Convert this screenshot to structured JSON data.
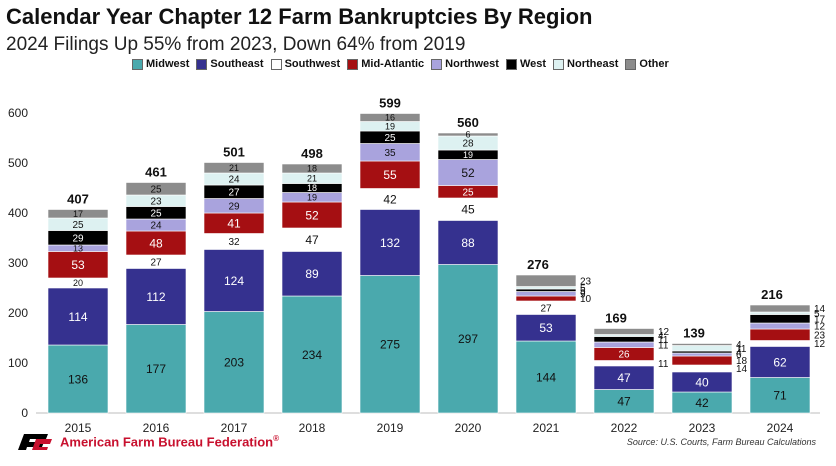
{
  "chart_data": {
    "type": "bar",
    "stacked": true,
    "title": "Calendar Year Chapter 12 Farm Bankruptcies By Region",
    "subtitle": "2024 Filings Up 55% from 2023, Down 64% from 2019",
    "categories": [
      "2015",
      "2016",
      "2017",
      "2018",
      "2019",
      "2020",
      "2021",
      "2022",
      "2023",
      "2024"
    ],
    "ylim": [
      0,
      600
    ],
    "yticks": [
      0,
      100,
      200,
      300,
      400,
      500,
      600
    ],
    "grid": false,
    "legend_position": "top",
    "totals": [
      407,
      461,
      501,
      498,
      599,
      560,
      276,
      169,
      139,
      216
    ],
    "series": [
      {
        "name": "Midwest",
        "color": "#4aa9ad",
        "values": [
          136,
          177,
          203,
          234,
          275,
          297,
          144,
          47,
          42,
          71
        ]
      },
      {
        "name": "Southeast",
        "color": "#35318f",
        "values": [
          114,
          112,
          124,
          89,
          132,
          88,
          53,
          47,
          40,
          62
        ]
      },
      {
        "name": "Southwest",
        "color": "#ffffff",
        "values": [
          20,
          27,
          32,
          47,
          42,
          45,
          27,
          11,
          14,
          12
        ]
      },
      {
        "name": "Mid-Atlantic",
        "color": "#a50f12",
        "values": [
          53,
          48,
          41,
          52,
          55,
          25,
          10,
          26,
          18,
          23
        ]
      },
      {
        "name": "Northwest",
        "color": "#a9a3dd",
        "values": [
          13,
          24,
          29,
          19,
          35,
          52,
          9,
          11,
          6,
          12
        ]
      },
      {
        "name": "West",
        "color": "#000000",
        "values": [
          29,
          25,
          27,
          18,
          25,
          19,
          5,
          11,
          4,
          17
        ]
      },
      {
        "name": "Northeast",
        "color": "#ddf1f1",
        "values": [
          25,
          23,
          24,
          21,
          19,
          28,
          5,
          4,
          11,
          5
        ]
      },
      {
        "name": "Other",
        "color": "#8c8c8c",
        "values": [
          17,
          25,
          21,
          18,
          16,
          6,
          23,
          12,
          4,
          14
        ]
      }
    ]
  },
  "footer": {
    "organization": "American Farm Bureau Federation",
    "trademark": "®",
    "logo_icon": "afbf-logo-icon",
    "source": "Source: U.S. Courts, Farm Bureau Calculations"
  }
}
